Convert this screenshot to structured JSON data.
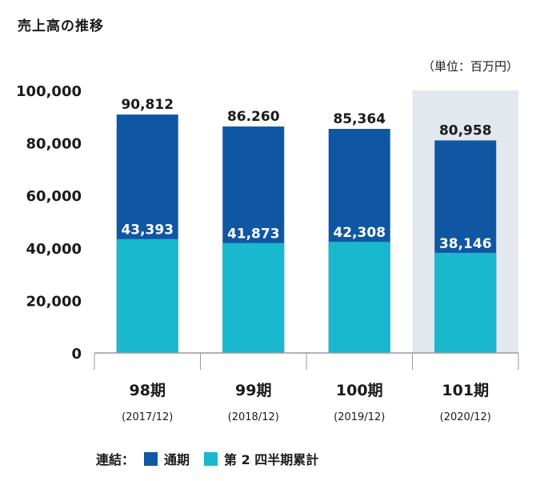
{
  "title": "売上高の推移",
  "unit_label": "（単位：百万円）",
  "legend": {
    "prefix": "連結：",
    "items": [
      {
        "label": "通期",
        "color": "#0f57a3"
      },
      {
        "label": "第 2 四半期累計",
        "color": "#1ab8cf"
      }
    ]
  },
  "colors": {
    "full_year": "#0f57a3",
    "half_year": "#1ab8cf",
    "highlight_band": "#e3e7ee"
  },
  "chart_data": {
    "type": "bar",
    "stacking": "overlay",
    "categories": [
      "98期",
      "99期",
      "100期",
      "101期"
    ],
    "category_sublabels": [
      "(2017/12)",
      "(2018/12)",
      "(2019/12)",
      "(2020/12)"
    ],
    "series": [
      {
        "name": "通期",
        "values": [
          90812,
          86260,
          85364,
          80958
        ],
        "data_labels": [
          "90,812",
          "86.260",
          "85,364",
          "80,958"
        ]
      },
      {
        "name": "第 2 四半期累計",
        "values": [
          43393,
          41873,
          42308,
          38146
        ],
        "data_labels": [
          "43,393",
          "41,873",
          "42,308",
          "38,146"
        ]
      }
    ],
    "ylim": [
      0,
      100000
    ],
    "yticks": [
      "0",
      "20,000",
      "40,000",
      "60,000",
      "80,000",
      "100,000"
    ],
    "highlighted_category": "101期",
    "ylabel": "",
    "xlabel": ""
  }
}
